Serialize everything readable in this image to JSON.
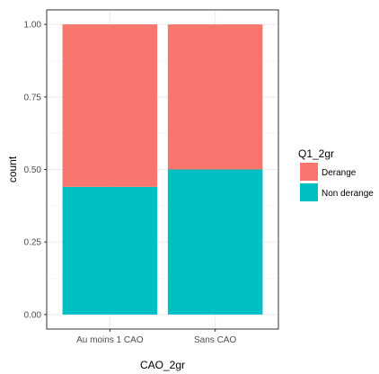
{
  "chart_data": {
    "type": "bar",
    "stacked": true,
    "categories": [
      "Au moins 1 CAO",
      "Sans CAO"
    ],
    "series": [
      {
        "name": "Derange",
        "values": [
          0.56,
          0.5
        ],
        "color": "#f8766d"
      },
      {
        "name": "Non derange",
        "values": [
          0.44,
          0.5
        ],
        "color": "#00bfc4"
      }
    ],
    "stack_order_bottom_to_top": [
      "Non derange",
      "Derange"
    ],
    "xlabel": "CAO_2gr",
    "ylabel": "count",
    "ylim": [
      0,
      1
    ],
    "yticks": [
      0.0,
      0.25,
      0.5,
      0.75,
      1.0
    ],
    "ytick_labels": [
      "0.00",
      "0.25",
      "0.50",
      "0.75",
      "1.00"
    ],
    "grid": true,
    "legend": {
      "title": "Q1_2gr",
      "placement": "right",
      "entries": [
        "Derange",
        "Non derange"
      ]
    }
  }
}
